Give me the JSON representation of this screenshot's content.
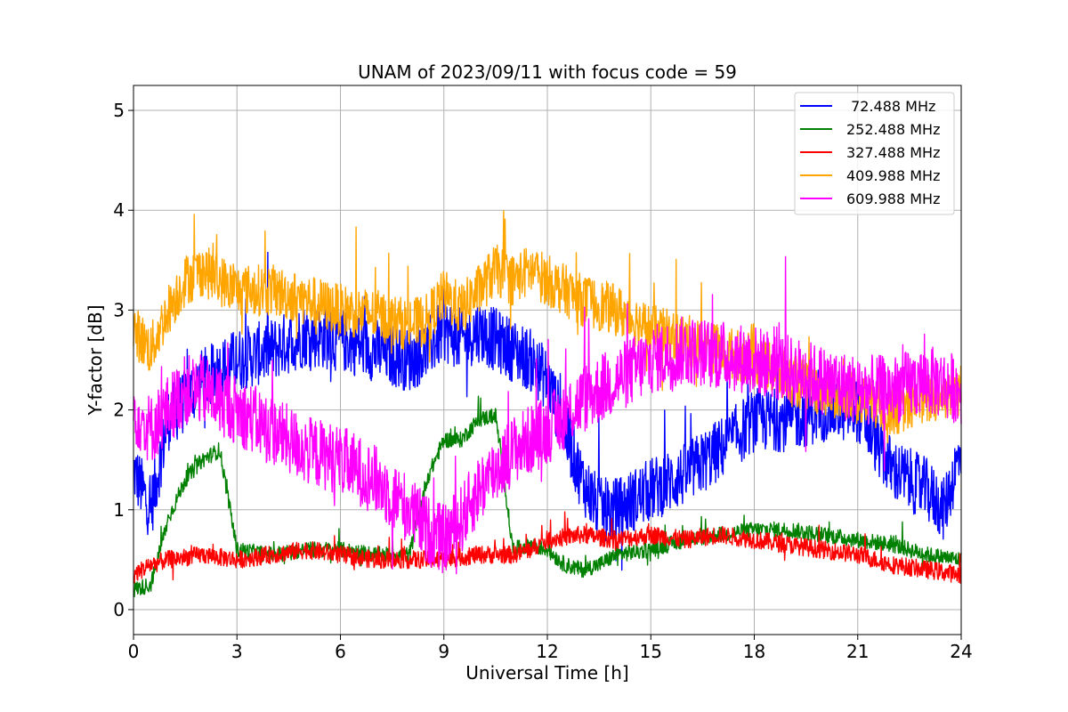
{
  "chart_data": {
    "type": "line",
    "title": "UNAM of 2023/09/11 with focus code = 59",
    "xlabel": "Universal Time [h]",
    "ylabel": "Y-factor [dB]",
    "xlim": [
      0,
      24
    ],
    "ylim": [
      -0.25,
      5.25
    ],
    "xticks": [
      0,
      3,
      6,
      9,
      12,
      15,
      18,
      21,
      24
    ],
    "yticks": [
      0,
      1,
      2,
      3,
      4,
      5
    ],
    "xtick_labels": [
      "0",
      "3",
      "6",
      "9",
      "12",
      "15",
      "18",
      "21",
      "24"
    ],
    "ytick_labels": [
      "0",
      "1",
      "2",
      "3",
      "4",
      "5"
    ],
    "grid": true,
    "legend_position": "top-right",
    "series": [
      {
        "name": " 72.488 MHz",
        "color": "#0000ff",
        "noise": 0.32,
        "x": [
          0,
          0.5,
          1,
          2,
          3,
          4,
          5,
          6,
          7,
          8,
          8.5,
          9,
          9.5,
          10,
          10.5,
          11,
          11.5,
          12,
          12.5,
          13,
          13.5,
          14,
          15,
          16,
          17,
          18,
          19,
          20,
          21,
          22,
          23,
          23.5,
          24
        ],
        "values": [
          1.4,
          1.0,
          1.9,
          2.3,
          2.5,
          2.6,
          2.75,
          2.7,
          2.6,
          2.5,
          2.6,
          2.8,
          2.7,
          2.8,
          2.7,
          2.6,
          2.5,
          2.3,
          1.8,
          1.3,
          1.0,
          1.0,
          1.2,
          1.35,
          1.6,
          1.9,
          1.9,
          2.0,
          2.0,
          1.4,
          1.2,
          1.0,
          1.6
        ]
      },
      {
        "name": "252.488 MHz",
        "color": "#008000",
        "noise": 0.08,
        "x": [
          0,
          0.5,
          1,
          1.5,
          2,
          2.5,
          3,
          4,
          5,
          6,
          7,
          8,
          8.5,
          9,
          9.5,
          10,
          10.5,
          11,
          11.5,
          12,
          12.5,
          13,
          13.5,
          14,
          15,
          16,
          17,
          18,
          19,
          20,
          21,
          22,
          23,
          24
        ],
        "values": [
          0.2,
          0.25,
          0.9,
          1.3,
          1.5,
          1.6,
          0.6,
          0.55,
          0.6,
          0.6,
          0.55,
          0.55,
          1.3,
          1.7,
          1.7,
          1.9,
          1.95,
          0.6,
          0.65,
          0.6,
          0.45,
          0.4,
          0.45,
          0.55,
          0.6,
          0.7,
          0.75,
          0.8,
          0.8,
          0.75,
          0.7,
          0.65,
          0.55,
          0.5
        ]
      },
      {
        "name": "327.488 MHz",
        "color": "#ff0000",
        "noise": 0.09,
        "x": [
          0,
          0.5,
          1,
          2,
          3,
          4,
          5,
          6,
          7,
          8,
          9,
          10,
          11,
          11.5,
          12,
          13,
          14,
          15,
          16,
          17,
          18,
          19,
          20,
          21,
          22,
          23,
          24
        ],
        "values": [
          0.35,
          0.45,
          0.5,
          0.55,
          0.5,
          0.55,
          0.6,
          0.55,
          0.5,
          0.5,
          0.5,
          0.55,
          0.55,
          0.6,
          0.7,
          0.75,
          0.7,
          0.75,
          0.7,
          0.75,
          0.7,
          0.65,
          0.6,
          0.55,
          0.45,
          0.4,
          0.35
        ]
      },
      {
        "name": "409.988 MHz",
        "color": "#ffa500",
        "noise": 0.26,
        "x": [
          0,
          0.5,
          1,
          1.5,
          2,
          2.5,
          3,
          4,
          5,
          6,
          7,
          8,
          8.5,
          9,
          9.5,
          10,
          10.5,
          11,
          11.5,
          12,
          12.5,
          13,
          14,
          15,
          16,
          17,
          18,
          18.5,
          19,
          20,
          21,
          22,
          23,
          24
        ],
        "values": [
          2.8,
          2.6,
          3.0,
          3.3,
          3.4,
          3.3,
          3.2,
          3.2,
          3.1,
          3.0,
          2.95,
          2.85,
          2.9,
          3.15,
          3.0,
          3.2,
          3.4,
          3.3,
          3.4,
          3.3,
          3.2,
          3.1,
          3.0,
          2.8,
          2.7,
          2.6,
          2.5,
          2.4,
          2.3,
          2.2,
          2.1,
          2.0,
          2.1,
          2.2
        ]
      },
      {
        "name": "609.988 MHz",
        "color": "#ff00ff",
        "noise": 0.35,
        "x": [
          0,
          0.5,
          1,
          1.5,
          2,
          2.5,
          3,
          4,
          5,
          6,
          7,
          8,
          8.5,
          9,
          9.5,
          10,
          10.5,
          11,
          12,
          13,
          14,
          15,
          16,
          17,
          18,
          19,
          20,
          21,
          22,
          23,
          24
        ],
        "values": [
          2.0,
          1.8,
          2.0,
          2.2,
          2.2,
          2.1,
          2.0,
          1.8,
          1.6,
          1.5,
          1.3,
          1.0,
          0.8,
          0.7,
          0.9,
          1.2,
          1.4,
          1.6,
          1.8,
          2.1,
          2.3,
          2.5,
          2.6,
          2.55,
          2.5,
          2.4,
          2.3,
          2.2,
          2.2,
          2.3,
          2.2
        ]
      }
    ]
  }
}
